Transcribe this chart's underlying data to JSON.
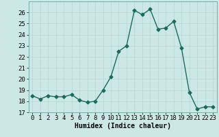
{
  "x": [
    0,
    1,
    2,
    3,
    4,
    5,
    6,
    7,
    8,
    9,
    10,
    11,
    12,
    13,
    14,
    15,
    16,
    17,
    18,
    19,
    20,
    21,
    22,
    23
  ],
  "y": [
    18.5,
    18.2,
    18.5,
    18.4,
    18.4,
    18.6,
    18.1,
    17.9,
    18.0,
    19.0,
    20.2,
    22.5,
    23.0,
    26.2,
    25.8,
    26.3,
    24.5,
    24.6,
    25.2,
    22.8,
    18.8,
    17.3,
    17.5,
    17.5
  ],
  "line_color": "#1a6b5a",
  "bg_color": "#cce8e4",
  "grid_color": "#b8d8d4",
  "xlabel": "Humidex (Indice chaleur)",
  "ylim": [
    17,
    27
  ],
  "xlim": [
    -0.5,
    23.5
  ],
  "yticks": [
    17,
    18,
    19,
    20,
    21,
    22,
    23,
    24,
    25,
    26
  ],
  "xticks": [
    0,
    1,
    2,
    3,
    4,
    5,
    6,
    7,
    8,
    9,
    10,
    11,
    12,
    13,
    14,
    15,
    16,
    17,
    18,
    19,
    20,
    21,
    22,
    23
  ],
  "marker": "D",
  "markersize": 2.5,
  "linewidth": 1.0,
  "axis_fontsize": 7.0,
  "tick_fontsize": 6.5
}
